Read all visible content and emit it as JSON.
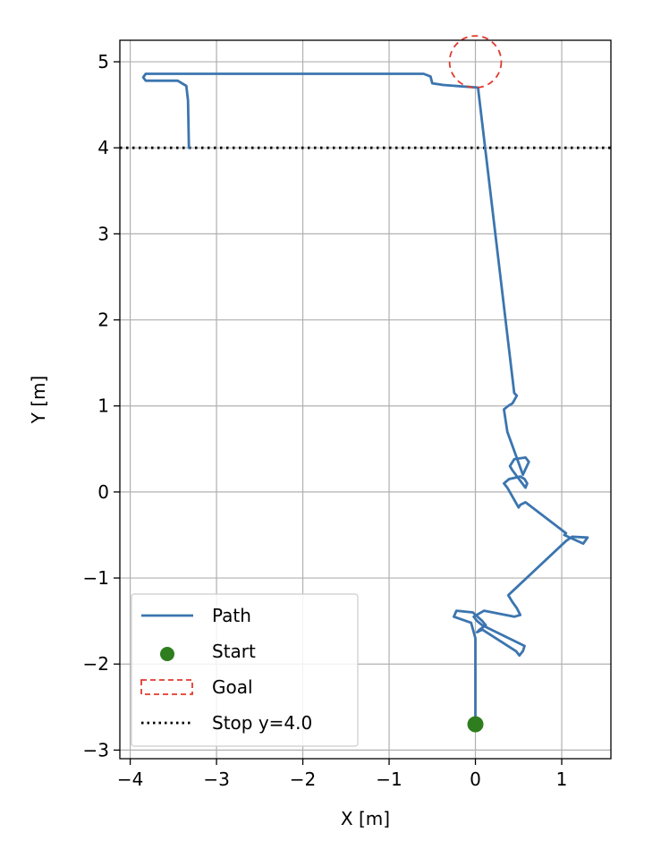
{
  "chart_data": {
    "type": "line",
    "title": "",
    "xlabel": "X [m]",
    "ylabel": "Y [m]",
    "xlim": [
      -4.12,
      1.57
    ],
    "ylim": [
      -3.1,
      5.25
    ],
    "xticks": [
      -4,
      -3,
      -2,
      -1,
      0,
      1
    ],
    "yticks": [
      -3,
      -2,
      -1,
      0,
      1,
      2,
      3,
      4,
      5
    ],
    "xtick_labels": [
      "−4",
      "−3",
      "−2",
      "−1",
      "0",
      "1"
    ],
    "ytick_labels": [
      "−3",
      "−2",
      "−1",
      "0",
      "1",
      "2",
      "3",
      "4",
      "5"
    ],
    "grid": true,
    "legend_position": "lower-left",
    "colors": {
      "path": "#3b75af",
      "start": "#2e7d1e",
      "goal": "#e03a2f",
      "stop": "#000000",
      "grid": "#b0b0b0"
    },
    "series": [
      {
        "name": "Path",
        "kind": "line",
        "x": [
          0.0,
          0.0,
          0.0,
          -0.05,
          -0.25,
          -0.22,
          -0.03,
          0.08,
          0.12,
          0.05,
          0.02,
          0.08,
          0.47,
          0.51,
          0.55,
          0.57,
          0.08,
          0.02,
          -0.02,
          0.1,
          0.45,
          0.52,
          0.48,
          0.43,
          0.38,
          1.05,
          1.12,
          1.3,
          1.25,
          1.03,
          1.05,
          0.58,
          0.52,
          0.5,
          0.37,
          0.33,
          0.39,
          0.52,
          0.57,
          0.6,
          0.58,
          0.43,
          0.4,
          0.45,
          0.58,
          0.62,
          0.55,
          0.37,
          0.33,
          0.38,
          0.43,
          0.48,
          0.45,
          0.03,
          -0.37,
          -0.5,
          -0.52,
          -0.6,
          -3.82,
          -3.85,
          -3.82,
          -3.45,
          -3.35,
          -3.33,
          -3.32
        ],
        "y": [
          -2.7,
          -2.3,
          -1.7,
          -1.52,
          -1.45,
          -1.38,
          -1.4,
          -1.5,
          -1.55,
          -1.6,
          -1.63,
          -1.6,
          -1.85,
          -1.9,
          -1.85,
          -1.79,
          -1.55,
          -1.5,
          -1.45,
          -1.38,
          -1.45,
          -1.43,
          -1.35,
          -1.28,
          -1.2,
          -0.57,
          -0.52,
          -0.53,
          -0.6,
          -0.5,
          -0.48,
          -0.12,
          -0.15,
          -0.18,
          0.05,
          0.1,
          0.15,
          0.18,
          0.15,
          0.1,
          0.05,
          0.25,
          0.3,
          0.38,
          0.4,
          0.35,
          0.2,
          0.7,
          0.96,
          1.0,
          1.03,
          1.12,
          1.15,
          4.7,
          4.73,
          4.75,
          4.83,
          4.86,
          4.86,
          4.82,
          4.78,
          4.78,
          4.72,
          4.55,
          4.0
        ]
      },
      {
        "name": "Start",
        "kind": "scatter",
        "x": [
          0.0
        ],
        "y": [
          -2.7
        ]
      },
      {
        "name": "Goal",
        "kind": "circle",
        "center": [
          0.0,
          5.0
        ],
        "radius": 0.3
      },
      {
        "name": "Stop y=4.0",
        "kind": "hline",
        "y": 4.0
      }
    ],
    "legend": [
      "Path",
      "Start",
      "Goal",
      "Stop y=4.0"
    ]
  }
}
